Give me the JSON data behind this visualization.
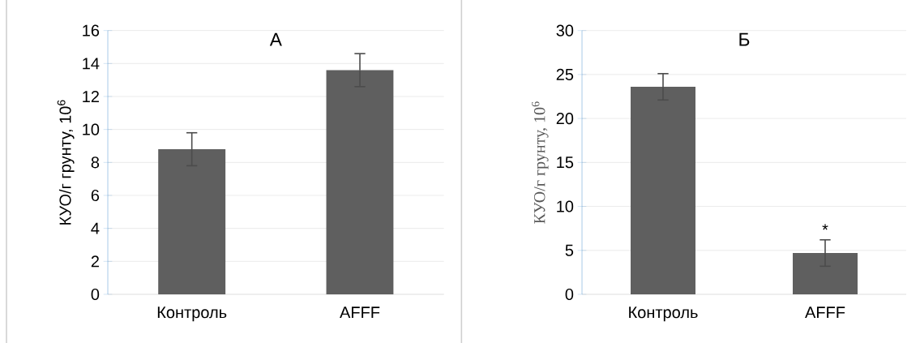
{
  "chart_data": [
    {
      "type": "bar",
      "title": "А",
      "ylabel": "КУО/г грунту, 10$^{6}$",
      "categories": [
        "Контроль",
        "AFFF"
      ],
      "values": [
        8.8,
        13.6
      ],
      "errors": [
        1.0,
        1.0
      ],
      "color": "#5f5f5f",
      "ylim": [
        0,
        16
      ],
      "yticks": [
        0,
        2,
        4,
        6,
        8,
        10,
        12,
        14,
        16
      ],
      "grid": "y"
    },
    {
      "type": "bar",
      "title": "Б",
      "ylabel": "КУО/г грунту, 10$^{6}$",
      "categories": [
        "Контроль",
        "AFFF"
      ],
      "values": [
        23.6,
        4.7
      ],
      "errors": [
        1.5,
        1.5
      ],
      "color": "#5f5f5f",
      "ylim": [
        0,
        30
      ],
      "yticks": [
        0,
        5,
        10,
        15,
        20,
        25,
        30
      ],
      "grid": "y",
      "annotations": [
        {
          "text": "*",
          "x": "AFFF",
          "y": 6.2
        }
      ]
    }
  ]
}
